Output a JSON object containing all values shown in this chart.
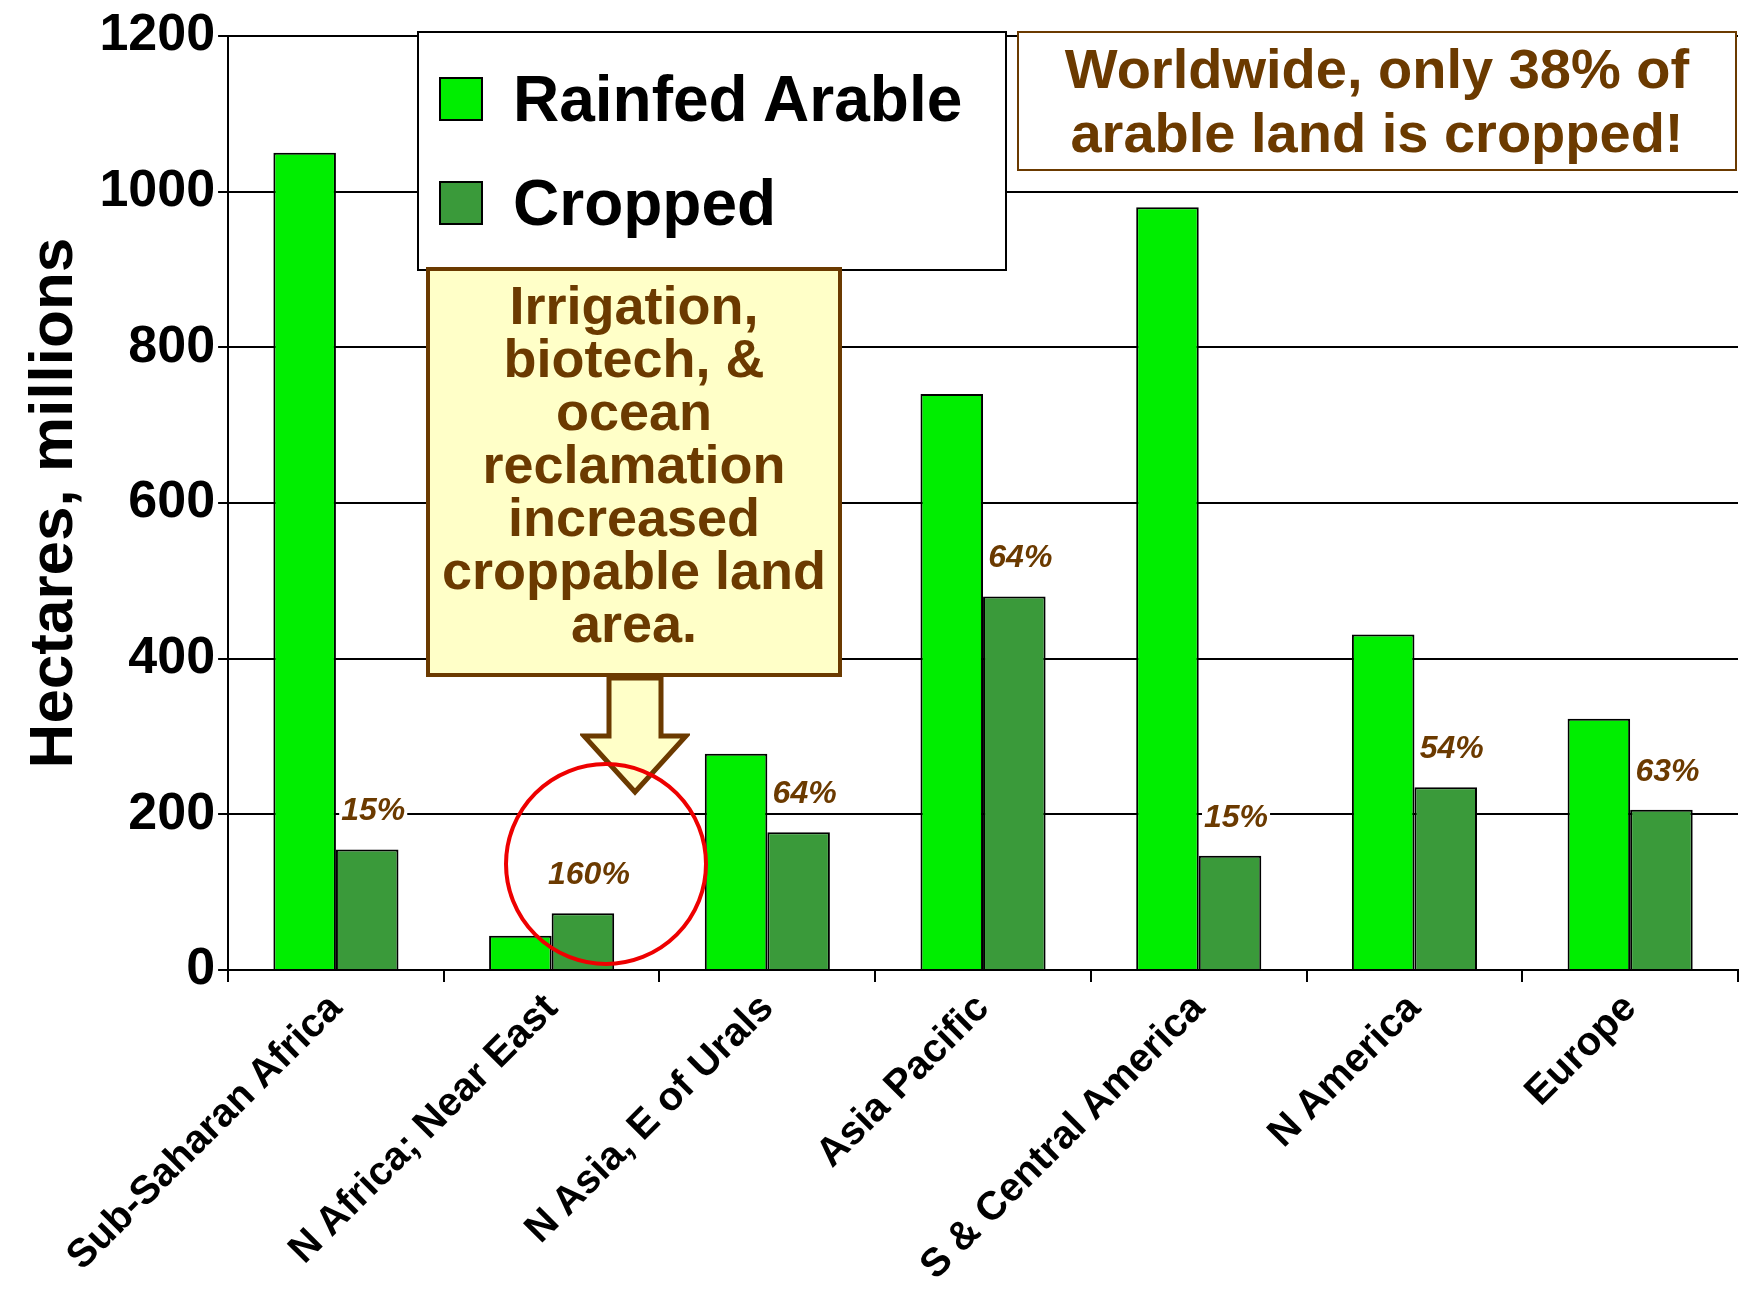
{
  "chart_data": {
    "type": "bar",
    "ylabel": "Hectares, millions",
    "categories": [
      "Sub-Saharan Africa",
      "N Africa; Near East",
      "N Asia, E of Urals",
      "Asia Pacific",
      "S & Central America",
      "N America",
      "Europe"
    ],
    "series": [
      {
        "name": "Rainfed Arable",
        "color": "#00ee00",
        "values": [
          1050,
          44,
          278,
          740,
          980,
          431,
          323
        ]
      },
      {
        "name": "Cropped",
        "color": "#3a9a3a",
        "values": [
          155,
          73,
          177,
          480,
          147,
          235,
          206
        ]
      }
    ],
    "ylim": [
      0,
      1200
    ],
    "yticks": [
      0,
      200,
      400,
      600,
      800,
      1000,
      1200
    ],
    "grid": "y",
    "legend": "top left",
    "annotations": [
      "Worldwide, only 38% of arable land is cropped!",
      "Irrigation, biotech, & ocean reclamation increased croppable land area.",
      {
        "text": "15%",
        "x": "Sub-Saharan Africa",
        "y": 155
      },
      {
        "text": "160%",
        "x": "N Africa; Near East",
        "y": 73
      },
      {
        "text": "64%",
        "x": "N Asia, E of Urals",
        "y": 177
      },
      {
        "text": "64%",
        "x": "Asia Pacific",
        "y": 480
      },
      {
        "text": "15%",
        "x": "S & Central America",
        "y": 147
      },
      {
        "text": "54%",
        "x": "N America",
        "y": 235
      },
      {
        "text": "63%",
        "x": "Europe",
        "y": 206
      }
    ]
  }
}
